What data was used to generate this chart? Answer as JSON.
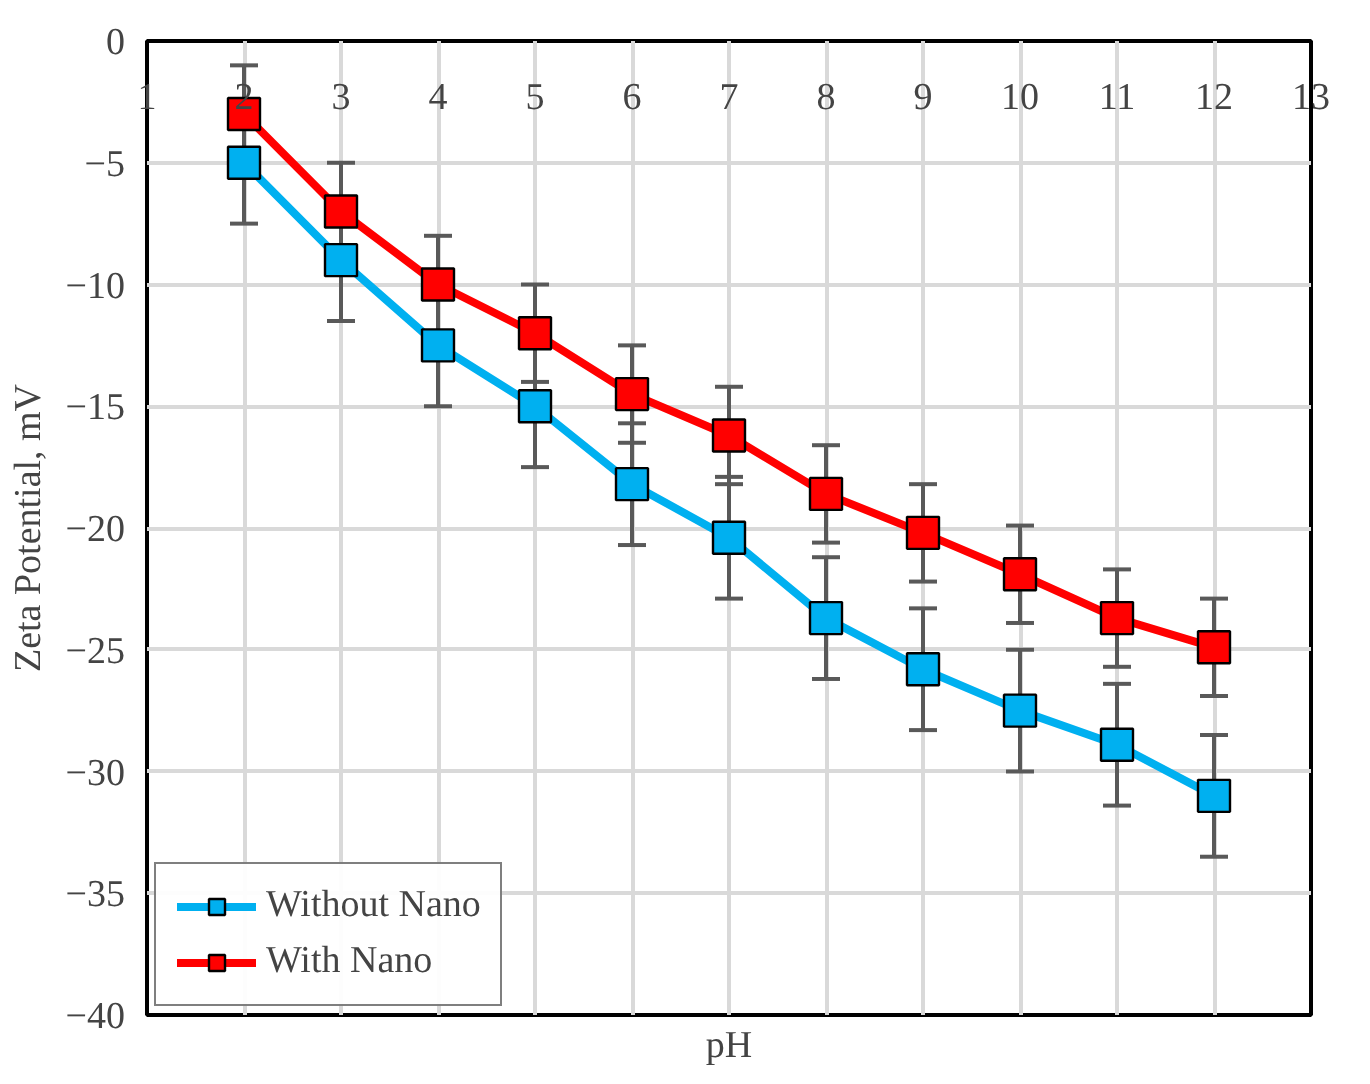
{
  "chart_data": {
    "type": "line",
    "xlabel": "pH",
    "ylabel": "Zeta Potential, mV",
    "x": [
      2,
      3,
      4,
      5,
      6,
      7,
      8,
      9,
      10,
      11,
      12
    ],
    "series": [
      {
        "name": "Without Nano",
        "color": "#00b0f0",
        "values": [
          -5,
          -9,
          -12.5,
          -15,
          -18.2,
          -20.4,
          -23.7,
          -25.8,
          -27.5,
          -28.9,
          -31
        ],
        "errors": [
          2.5,
          2.5,
          2.5,
          2.5,
          2.5,
          2.5,
          2.5,
          2.5,
          2.5,
          2.5,
          2.5
        ]
      },
      {
        "name": "With Nano",
        "color": "#ff0000",
        "values": [
          -3,
          -7,
          -10,
          -12,
          -14.5,
          -16.2,
          -18.6,
          -20.2,
          -21.9,
          -23.7,
          -24.9
        ],
        "errors": [
          2,
          2,
          2,
          2,
          2,
          2,
          2,
          2,
          2,
          2,
          2
        ]
      }
    ],
    "xlim": [
      1,
      13
    ],
    "xticks": [
      1,
      2,
      3,
      4,
      5,
      6,
      7,
      8,
      9,
      10,
      11,
      12,
      13
    ],
    "ylim": [
      -40,
      0
    ],
    "yticks": [
      -40,
      -35,
      -30,
      -25,
      -20,
      -15,
      -10,
      -5,
      0
    ],
    "grid": true,
    "legend": "bottom left",
    "marker": "square",
    "line_style": "solid"
  }
}
